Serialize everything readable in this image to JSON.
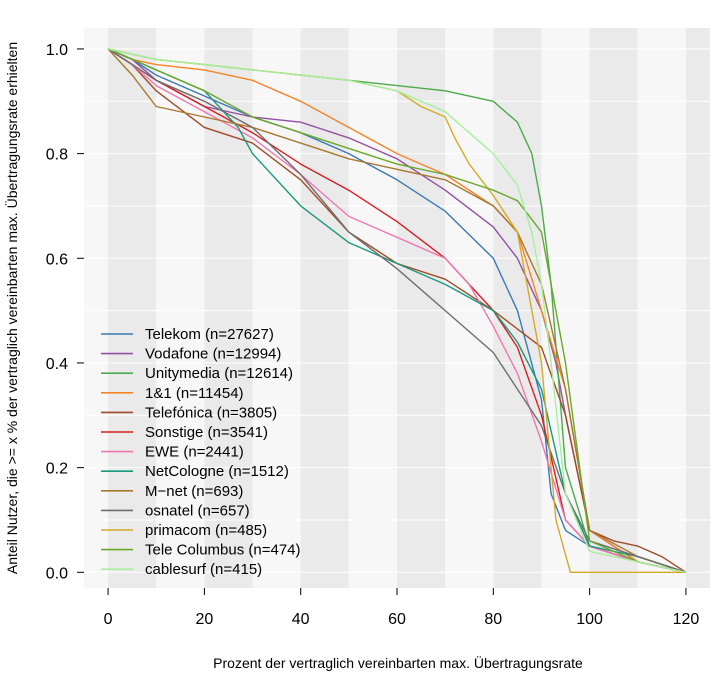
{
  "chart_data": {
    "type": "line",
    "title": "",
    "xlabel": "Prozent der vertraglich vereinbarten max. Übertragungsrate",
    "ylabel": "Anteil Nutzer, die >= x % der vertraglich vereinbarten max. Übertragungsrate erhielten",
    "xlim": [
      -5,
      125
    ],
    "ylim": [
      -0.03,
      1.04
    ],
    "x_ticks": [
      "0",
      "20",
      "40",
      "60",
      "80",
      "100",
      "120"
    ],
    "y_ticks": [
      "0.0",
      "0.2",
      "0.4",
      "0.6",
      "0.8",
      "1.0"
    ],
    "legend_position": "bottom-left",
    "background_bands": "alternating grey bands every 10 percent",
    "series": [
      {
        "name": "Telekom (n=27627)",
        "color": "#3a78b7",
        "x": [
          0,
          5,
          10,
          20,
          30,
          40,
          50,
          60,
          70,
          80,
          85,
          90,
          92,
          95,
          100,
          110,
          120
        ],
        "y": [
          1.0,
          0.98,
          0.95,
          0.91,
          0.87,
          0.84,
          0.8,
          0.75,
          0.69,
          0.6,
          0.5,
          0.33,
          0.15,
          0.08,
          0.05,
          0.02,
          0.0
        ]
      },
      {
        "name": "Vodafone (n=12994)",
        "color": "#944fa4",
        "x": [
          0,
          5,
          10,
          20,
          30,
          40,
          50,
          60,
          70,
          80,
          85,
          90,
          93,
          95,
          100,
          110,
          120
        ],
        "y": [
          1.0,
          0.98,
          0.94,
          0.89,
          0.87,
          0.86,
          0.83,
          0.79,
          0.73,
          0.66,
          0.6,
          0.5,
          0.4,
          0.3,
          0.08,
          0.02,
          0.0
        ]
      },
      {
        "name": "Unitymedia (n=12614)",
        "color": "#4cab4a",
        "x": [
          0,
          5,
          10,
          20,
          30,
          40,
          50,
          60,
          70,
          80,
          85,
          88,
          90,
          92,
          95,
          100,
          110,
          120
        ],
        "y": [
          1.0,
          0.99,
          0.98,
          0.97,
          0.96,
          0.95,
          0.94,
          0.93,
          0.92,
          0.9,
          0.86,
          0.8,
          0.7,
          0.55,
          0.2,
          0.05,
          0.02,
          0.0
        ]
      },
      {
        "name": "1&1 (n=11454)",
        "color": "#f58426",
        "x": [
          0,
          5,
          10,
          20,
          30,
          40,
          50,
          60,
          70,
          80,
          85,
          90,
          95,
          100,
          105,
          110,
          120
        ],
        "y": [
          1.0,
          0.98,
          0.97,
          0.96,
          0.94,
          0.9,
          0.85,
          0.8,
          0.76,
          0.7,
          0.65,
          0.5,
          0.35,
          0.08,
          0.05,
          0.02,
          0.0
        ]
      },
      {
        "name": "Telefónica (n=3805)",
        "color": "#a04b27",
        "x": [
          0,
          5,
          10,
          20,
          30,
          40,
          50,
          60,
          70,
          80,
          90,
          95,
          100,
          105,
          110,
          115,
          120
        ],
        "y": [
          1.0,
          0.97,
          0.92,
          0.85,
          0.82,
          0.75,
          0.65,
          0.59,
          0.56,
          0.5,
          0.43,
          0.3,
          0.08,
          0.06,
          0.05,
          0.03,
          0.0
        ]
      },
      {
        "name": "Sonstige (n=3541)",
        "color": "#d81e20",
        "x": [
          0,
          5,
          10,
          20,
          30,
          40,
          50,
          60,
          70,
          80,
          85,
          90,
          95,
          100,
          110,
          120
        ],
        "y": [
          1.0,
          0.97,
          0.94,
          0.89,
          0.84,
          0.78,
          0.73,
          0.67,
          0.6,
          0.5,
          0.43,
          0.3,
          0.1,
          0.05,
          0.02,
          0.0
        ]
      },
      {
        "name": "EWE (n=2441)",
        "color": "#f077b1",
        "x": [
          0,
          5,
          10,
          20,
          30,
          40,
          50,
          60,
          70,
          75,
          80,
          85,
          90,
          95,
          100,
          110,
          120
        ],
        "y": [
          1.0,
          0.97,
          0.93,
          0.88,
          0.83,
          0.76,
          0.68,
          0.64,
          0.6,
          0.55,
          0.47,
          0.38,
          0.25,
          0.1,
          0.05,
          0.02,
          0.0
        ]
      },
      {
        "name": "NetCologne (n=1512)",
        "color": "#1a9a7d",
        "x": [
          0,
          5,
          10,
          20,
          27,
          30,
          40,
          50,
          60,
          70,
          80,
          85,
          90,
          95,
          100,
          110,
          120
        ],
        "y": [
          1.0,
          0.98,
          0.96,
          0.92,
          0.85,
          0.8,
          0.7,
          0.63,
          0.59,
          0.55,
          0.5,
          0.44,
          0.35,
          0.15,
          0.05,
          0.03,
          0.0
        ]
      },
      {
        "name": "M−net (n=693)",
        "color": "#a8782d",
        "x": [
          0,
          5,
          10,
          20,
          30,
          40,
          50,
          60,
          70,
          80,
          85,
          90,
          95,
          100,
          110,
          120
        ],
        "y": [
          1.0,
          0.95,
          0.89,
          0.87,
          0.85,
          0.82,
          0.79,
          0.77,
          0.75,
          0.7,
          0.65,
          0.55,
          0.35,
          0.08,
          0.03,
          0.0
        ]
      },
      {
        "name": "osnatel (n=657)",
        "color": "#6e6e6e",
        "x": [
          0,
          5,
          10,
          20,
          30,
          40,
          50,
          60,
          70,
          80,
          85,
          90,
          95,
          100,
          110,
          120
        ],
        "y": [
          1.0,
          0.97,
          0.94,
          0.9,
          0.85,
          0.76,
          0.65,
          0.58,
          0.5,
          0.42,
          0.35,
          0.28,
          0.15,
          0.06,
          0.03,
          0.0
        ]
      },
      {
        "name": "primacom (n=485)",
        "color": "#d4aa24",
        "x": [
          0,
          5,
          10,
          20,
          30,
          40,
          50,
          60,
          65,
          70,
          72,
          75,
          80,
          85,
          90,
          93,
          96,
          100,
          110,
          120
        ],
        "y": [
          1.0,
          0.99,
          0.98,
          0.97,
          0.96,
          0.95,
          0.94,
          0.92,
          0.89,
          0.87,
          0.83,
          0.78,
          0.72,
          0.65,
          0.4,
          0.1,
          0.0,
          0.0,
          0.0,
          0.0
        ]
      },
      {
        "name": "Tele Columbus (n=474)",
        "color": "#6ba82a",
        "x": [
          0,
          5,
          10,
          20,
          30,
          40,
          50,
          60,
          70,
          80,
          85,
          90,
          95,
          100,
          110,
          120
        ],
        "y": [
          1.0,
          0.98,
          0.96,
          0.92,
          0.87,
          0.84,
          0.81,
          0.78,
          0.76,
          0.73,
          0.71,
          0.65,
          0.4,
          0.06,
          0.02,
          0.0
        ]
      },
      {
        "name": "cablesurf (n=415)",
        "color": "#a5f09e",
        "x": [
          0,
          5,
          10,
          20,
          30,
          40,
          50,
          60,
          70,
          75,
          80,
          85,
          88,
          90,
          92,
          95,
          100,
          110,
          120
        ],
        "y": [
          1.0,
          0.99,
          0.98,
          0.97,
          0.96,
          0.95,
          0.94,
          0.92,
          0.88,
          0.84,
          0.8,
          0.74,
          0.65,
          0.55,
          0.4,
          0.15,
          0.04,
          0.02,
          0.0
        ]
      }
    ]
  }
}
